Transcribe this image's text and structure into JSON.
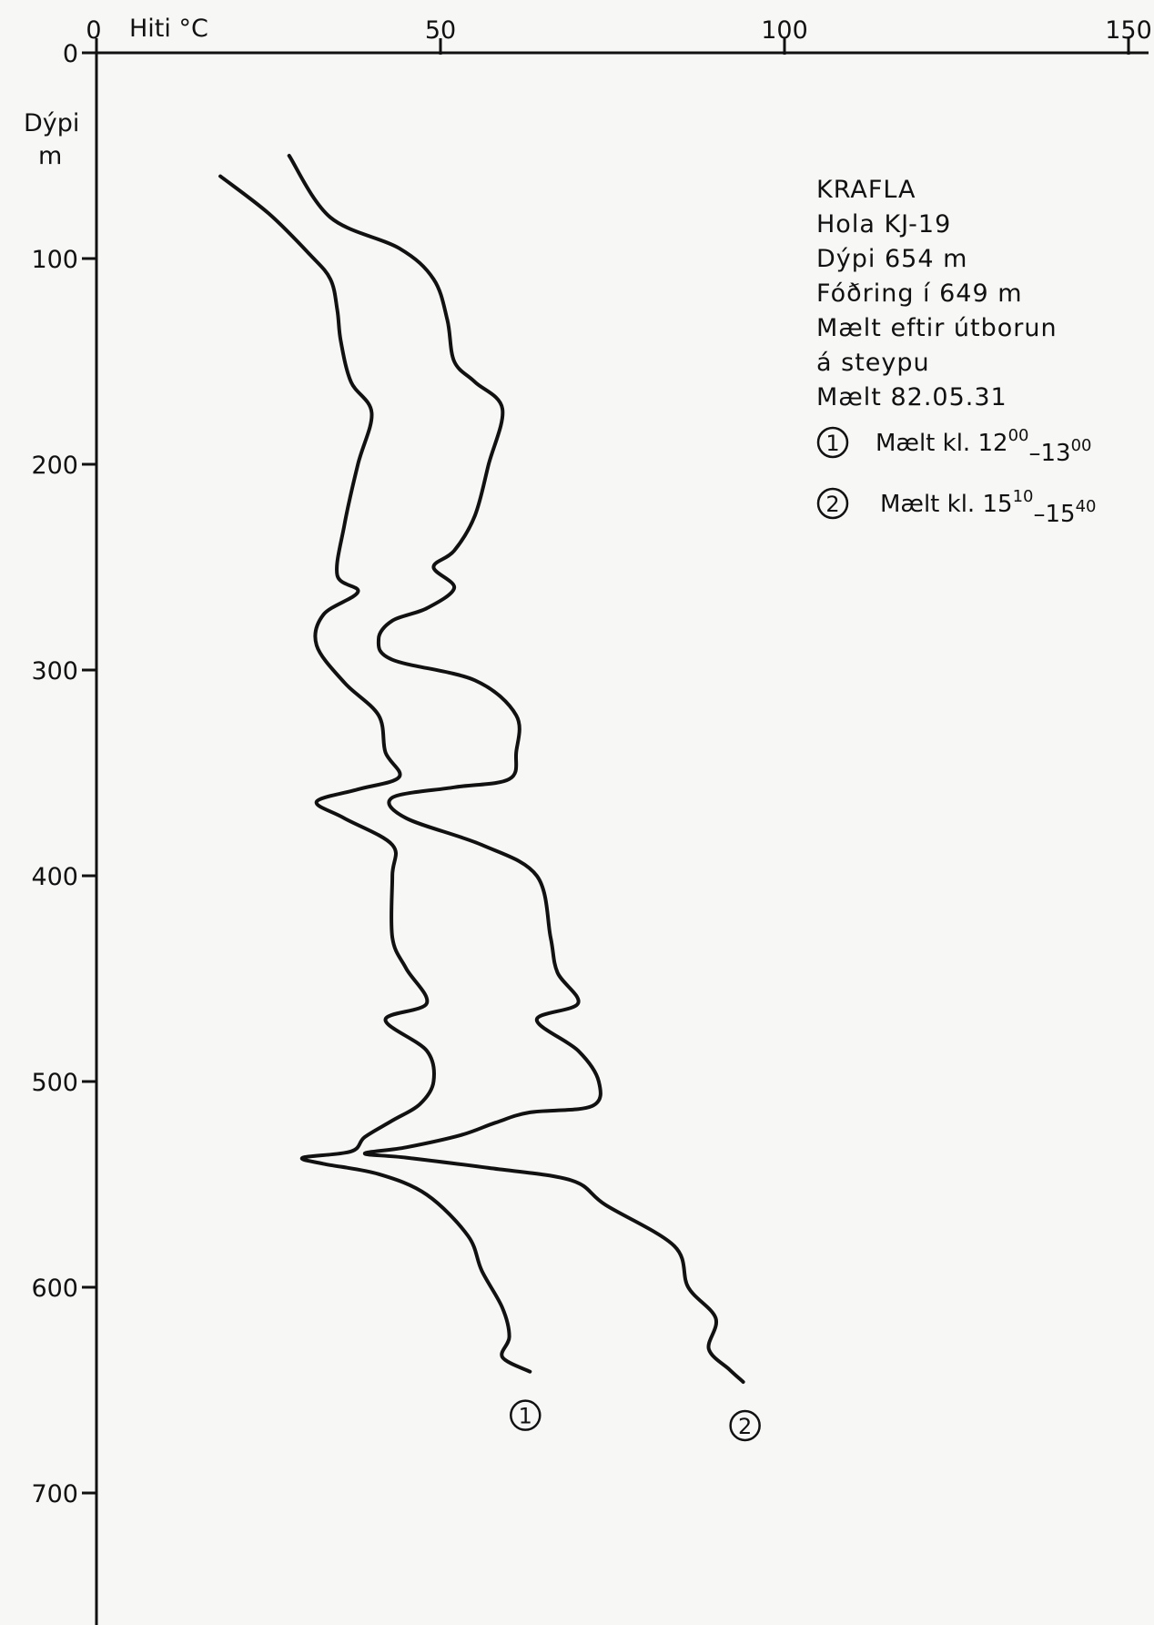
{
  "chart_data": {
    "type": "line",
    "title": "",
    "x_axis": {
      "label": "Hiti °C",
      "min": 0,
      "max": 150,
      "ticks": [
        0,
        50,
        100,
        150
      ],
      "tick_labels": [
        "0",
        "50",
        "100",
        "150"
      ],
      "position": "top"
    },
    "y_axis": {
      "label_line1": "Dýpi",
      "label_line2": "m",
      "min": 0,
      "max": 760,
      "inverted": true,
      "ticks": [
        0,
        100,
        200,
        300,
        400,
        500,
        600,
        700
      ],
      "tick_labels": [
        "0",
        "100",
        "200",
        "300",
        "400",
        "500",
        "600",
        "700"
      ]
    },
    "grid": false,
    "info_lines": [
      "KRAFLA",
      "Hola  KJ-19",
      "Dýpi 654 m",
      "Fóðring í 649 m",
      "Mælt eftir útborun",
      "á steypu",
      "Mælt 82.05.31"
    ],
    "legend": [
      {
        "marker": "1",
        "label": "Mælt kl.",
        "t1": "12",
        "s1": "00",
        "dash": "–",
        "t2": "13",
        "s2": "00"
      },
      {
        "marker": "2",
        "label": "Mælt kl.",
        "t1": "15",
        "s1": "10",
        "dash": "–",
        "t2": "15",
        "s2": "40"
      }
    ],
    "series": [
      {
        "marker": "1",
        "points": [
          [
            18,
            60
          ],
          [
            25,
            78
          ],
          [
            31,
            98
          ],
          [
            34,
            110
          ],
          [
            35,
            125
          ],
          [
            35.5,
            140
          ],
          [
            37,
            160
          ],
          [
            40,
            175
          ],
          [
            38,
            200
          ],
          [
            36,
            230
          ],
          [
            35,
            254
          ],
          [
            38,
            262
          ],
          [
            33,
            273
          ],
          [
            32,
            288
          ],
          [
            36,
            306
          ],
          [
            41,
            322
          ],
          [
            42,
            340
          ],
          [
            44,
            352
          ],
          [
            38,
            358
          ],
          [
            32,
            364
          ],
          [
            36,
            372
          ],
          [
            43,
            385
          ],
          [
            43,
            400
          ],
          [
            43,
            430
          ],
          [
            45,
            445
          ],
          [
            48,
            462
          ],
          [
            42,
            470
          ],
          [
            48,
            485
          ],
          [
            49,
            500
          ],
          [
            47,
            511
          ],
          [
            43,
            519
          ],
          [
            39,
            527
          ],
          [
            37,
            534
          ],
          [
            30,
            537
          ],
          [
            33,
            540
          ],
          [
            41,
            545
          ],
          [
            48,
            555
          ],
          [
            54,
            575
          ],
          [
            56,
            592
          ],
          [
            59,
            610
          ],
          [
            60,
            624
          ],
          [
            59,
            634
          ],
          [
            63,
            641
          ]
        ]
      },
      {
        "marker": "2",
        "points": [
          [
            28,
            50
          ],
          [
            34,
            80
          ],
          [
            44,
            95
          ],
          [
            49,
            110
          ],
          [
            51,
            130
          ],
          [
            52,
            150
          ],
          [
            55,
            160
          ],
          [
            59,
            173
          ],
          [
            57,
            200
          ],
          [
            55,
            225
          ],
          [
            52,
            242
          ],
          [
            49,
            250
          ],
          [
            52,
            260
          ],
          [
            48,
            270
          ],
          [
            43,
            276
          ],
          [
            41,
            285
          ],
          [
            43,
            295
          ],
          [
            55,
            305
          ],
          [
            61,
            322
          ],
          [
            61,
            340
          ],
          [
            60,
            353
          ],
          [
            52,
            357
          ],
          [
            43,
            362
          ],
          [
            45,
            372
          ],
          [
            56,
            385
          ],
          [
            64,
            400
          ],
          [
            66,
            430
          ],
          [
            67,
            447
          ],
          [
            70,
            462
          ],
          [
            64,
            470
          ],
          [
            70,
            485
          ],
          [
            73,
            500
          ],
          [
            72,
            512
          ],
          [
            63,
            515
          ],
          [
            58,
            520
          ],
          [
            53,
            526
          ],
          [
            45,
            532
          ],
          [
            39,
            535
          ],
          [
            45,
            537
          ],
          [
            57,
            542
          ],
          [
            69,
            548
          ],
          [
            74,
            560
          ],
          [
            84,
            580
          ],
          [
            86,
            600
          ],
          [
            90,
            615
          ],
          [
            89,
            630
          ],
          [
            92,
            640
          ],
          [
            94,
            646
          ]
        ]
      }
    ]
  }
}
